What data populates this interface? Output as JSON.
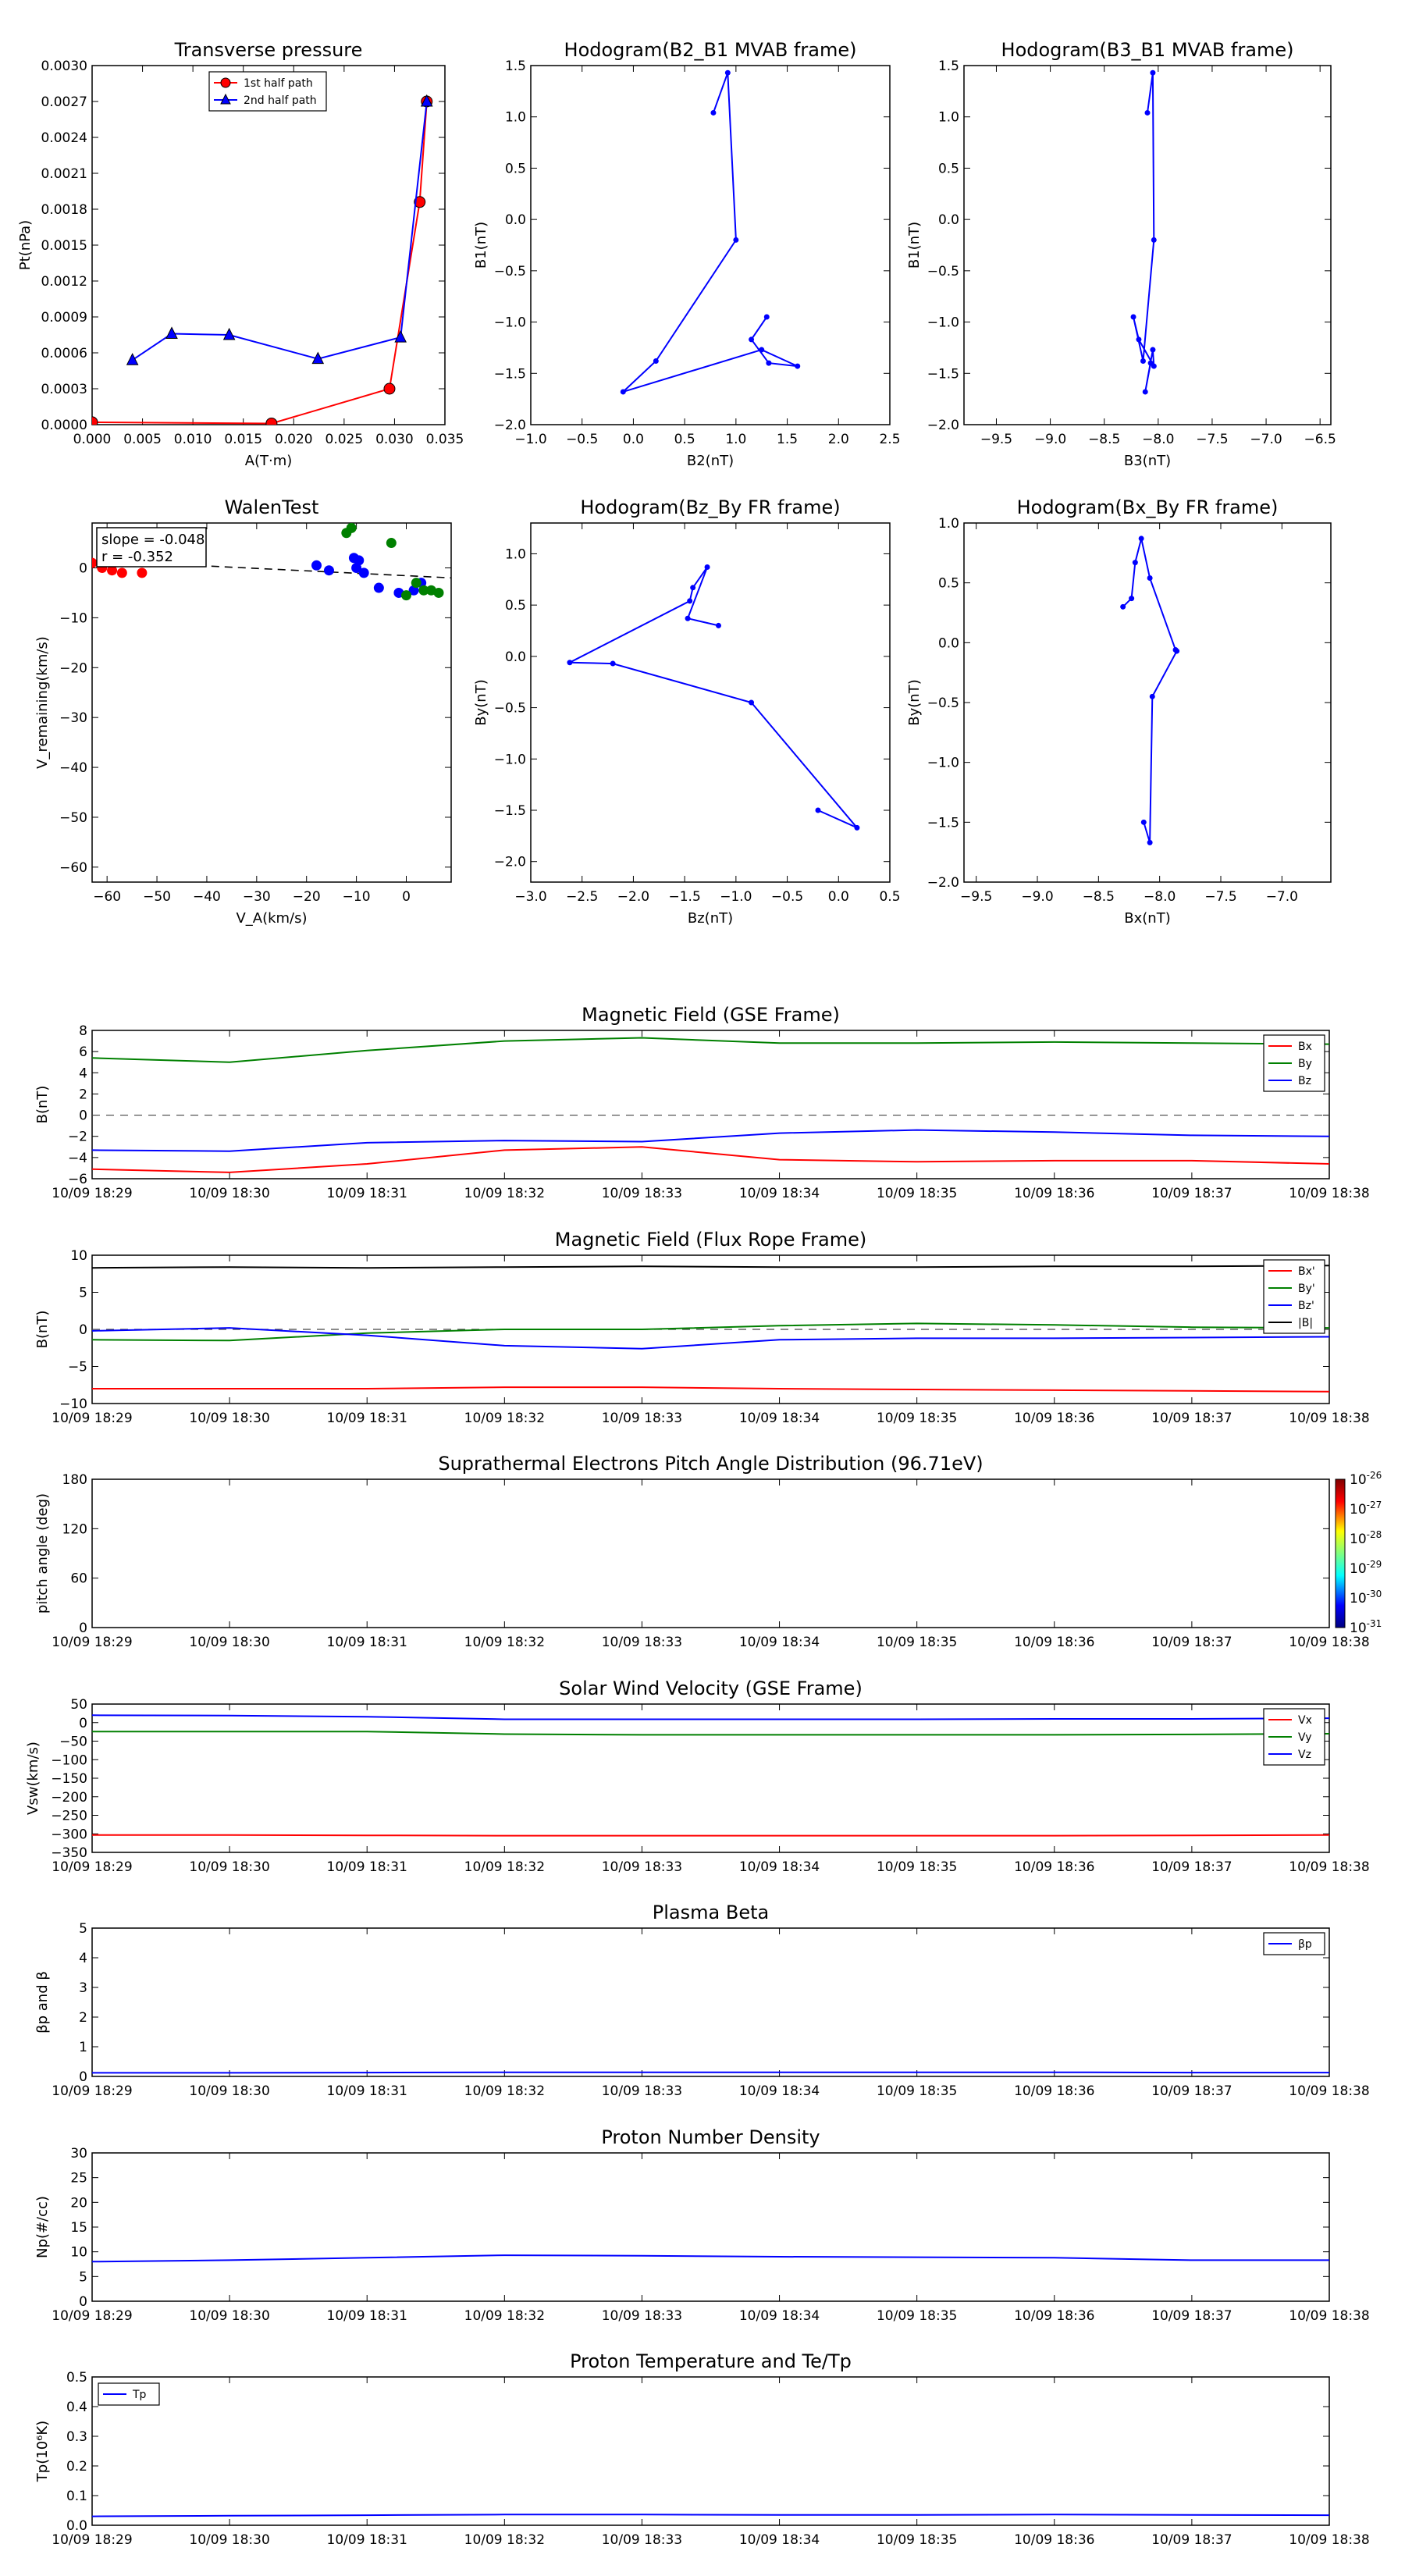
{
  "time_ticks": [
    "10/09 18:29",
    "10/09 18:30",
    "10/09 18:31",
    "10/09 18:32",
    "10/09 18:33",
    "10/09 18:34",
    "10/09 18:35",
    "10/09 18:36",
    "10/09 18:37",
    "10/09 18:38"
  ],
  "colors": {
    "red": "#ff0000",
    "green": "#008000",
    "blue": "#0000ff",
    "black": "#000000"
  },
  "chart_data": [
    {
      "id": "tp",
      "type": "line",
      "title": "Transverse pressure",
      "xlabel": "A(T·m)",
      "ylabel": "Pt(nPa)",
      "xlim": [
        0,
        0.035
      ],
      "ylim": [
        0,
        0.003
      ],
      "xticks": [
        0,
        0.005,
        0.01,
        0.015,
        0.02,
        0.025,
        0.03,
        0.035
      ],
      "xtick_labels": [
        "0.000",
        "0.005",
        "0.010",
        "0.015",
        "0.020",
        "0.025",
        "0.030",
        "0.035"
      ],
      "yticks": [
        0,
        0.0003,
        0.0006,
        0.0009,
        0.0012,
        0.0015,
        0.0018,
        0.0021,
        0.0024,
        0.0027,
        0.003
      ],
      "ytick_labels": [
        "0.0000",
        "0.0003",
        "0.0006",
        "0.0009",
        "0.0012",
        "0.0015",
        "0.0018",
        "0.0021",
        "0.0024",
        "0.0027",
        "0.0030"
      ],
      "legend": "top-center",
      "series": [
        {
          "name": "1st half path",
          "color": "#ff0000",
          "marker": "circle",
          "x": [
            0,
            0.0178,
            0.0295,
            0.0325,
            0.0332
          ],
          "y": [
            2e-05,
            1e-05,
            0.0003,
            0.00186,
            0.0027
          ]
        },
        {
          "name": "2nd half path",
          "color": "#0000ff",
          "marker": "triangle",
          "x": [
            0.004,
            0.0079,
            0.0136,
            0.0224,
            0.0306,
            0.0332
          ],
          "y": [
            0.00054,
            0.00076,
            0.00075,
            0.00055,
            0.00073,
            0.0027
          ]
        }
      ]
    },
    {
      "id": "h1",
      "type": "line",
      "title": "Hodogram(B2_B1 MVAB frame)",
      "xlabel": "B2(nT)",
      "ylabel": "B1(nT)",
      "xlim": [
        -1.0,
        2.5
      ],
      "ylim": [
        -2.0,
        1.5
      ],
      "xticks": [
        -1.0,
        -0.5,
        0,
        0.5,
        1.0,
        1.5,
        2.0,
        2.5
      ],
      "xtick_labels": [
        "−1.0",
        "−0.5",
        "0.0",
        "0.5",
        "1.0",
        "1.5",
        "2.0",
        "2.5"
      ],
      "yticks": [
        -2.0,
        -1.5,
        -1.0,
        -0.5,
        0,
        0.5,
        1.0,
        1.5
      ],
      "ytick_labels": [
        "−2.0",
        "−1.5",
        "−1.0",
        "−0.5",
        "0.0",
        "0.5",
        "1.0",
        "1.5"
      ],
      "series": [
        {
          "color": "#0000ff",
          "x": [
            0.78,
            0.92,
            1.0,
            0.22,
            -0.1,
            1.25,
            1.6,
            1.32,
            1.15,
            1.3
          ],
          "y": [
            1.04,
            1.43,
            -0.2,
            -1.38,
            -1.68,
            -1.27,
            -1.43,
            -1.4,
            -1.17,
            -0.95
          ]
        }
      ]
    },
    {
      "id": "h2",
      "type": "line",
      "title": "Hodogram(B3_B1 MVAB frame)",
      "xlabel": "B3(nT)",
      "ylabel": "B1(nT)",
      "xlim": [
        -9.8,
        -6.4
      ],
      "ylim": [
        -2.0,
        1.5
      ],
      "xticks": [
        -9.5,
        -9.0,
        -8.5,
        -8.0,
        -7.5,
        -7.0,
        -6.5
      ],
      "xtick_labels": [
        "−9.5",
        "−9.0",
        "−8.5",
        "−8.0",
        "−7.5",
        "−7.0",
        "−6.5"
      ],
      "yticks": [
        -2.0,
        -1.5,
        -1.0,
        -0.5,
        0,
        0.5,
        1.0,
        1.5
      ],
      "ytick_labels": [
        "−2.0",
        "−1.5",
        "−1.0",
        "−0.5",
        "0.0",
        "0.5",
        "1.0",
        "1.5"
      ],
      "series": [
        {
          "color": "#0000ff",
          "x": [
            -8.1,
            -8.05,
            -8.04,
            -8.14,
            -8.23,
            -8.18,
            -8.04,
            -8.05,
            -8.12,
            -8.07
          ],
          "y": [
            1.04,
            1.43,
            -0.2,
            -1.38,
            -0.95,
            -1.17,
            -1.43,
            -1.27,
            -1.68,
            -1.4
          ]
        }
      ]
    },
    {
      "id": "walen",
      "type": "scatter",
      "title": "WalenTest",
      "xlabel": "V_A(km/s)",
      "ylabel": "V_remaining(km/s)",
      "xlim": [
        -63,
        9
      ],
      "ylim": [
        -63,
        9
      ],
      "xticks": [
        -60,
        -50,
        -40,
        -30,
        -20,
        -10,
        0
      ],
      "xtick_labels": [
        "−60",
        "−50",
        "−40",
        "−30",
        "−20",
        "−10",
        "0"
      ],
      "yticks": [
        -60,
        -50,
        -40,
        -30,
        -20,
        -10,
        0
      ],
      "ytick_labels": [
        "−60",
        "−50",
        "−40",
        "−30",
        "−20",
        "−10",
        "0"
      ],
      "annotation": [
        "slope = -0.048",
        "r = -0.352"
      ],
      "fit_line": {
        "x": [
          -63,
          9
        ],
        "y": [
          1.5,
          -2.0
        ]
      },
      "series": [
        {
          "color": "#ff0000",
          "x": [
            -63,
            -61,
            -59,
            -57,
            -53
          ],
          "y": [
            1,
            0,
            -0.5,
            -1,
            -1
          ]
        },
        {
          "color": "#0000ff",
          "x": [
            -18,
            -15.5,
            -10.5,
            -9.5,
            -10,
            -8.5,
            -5.5,
            -1.5,
            1.5,
            3
          ],
          "y": [
            0.5,
            -0.5,
            2,
            1.5,
            0,
            -1,
            -4,
            -5,
            -4.5,
            -3
          ]
        },
        {
          "color": "#008000",
          "x": [
            -12,
            -11,
            -3,
            0,
            2,
            3.5,
            5,
            6.5
          ],
          "y": [
            7,
            8,
            5,
            -5.5,
            -3,
            -4.5,
            -4.5,
            -5
          ]
        }
      ]
    },
    {
      "id": "h3",
      "type": "line",
      "title": "Hodogram(Bz_By FR frame)",
      "xlabel": "Bz(nT)",
      "ylabel": "By(nT)",
      "xlim": [
        -3.0,
        0.5
      ],
      "ylim": [
        -2.2,
        1.3
      ],
      "xticks": [
        -3.0,
        -2.5,
        -2.0,
        -1.5,
        -1.0,
        -0.5,
        0,
        0.5
      ],
      "xtick_labels": [
        "−3.0",
        "−2.5",
        "−2.0",
        "−1.5",
        "−1.0",
        "−0.5",
        "0.0",
        "0.5"
      ],
      "yticks": [
        -2.0,
        -1.5,
        -1.0,
        -0.5,
        0,
        0.5,
        1.0
      ],
      "ytick_labels": [
        "−2.0",
        "−1.5",
        "−1.0",
        "−0.5",
        "0.0",
        "0.5",
        "1.0"
      ],
      "series": [
        {
          "color": "#0000ff",
          "x": [
            -0.2,
            0.18,
            -0.85,
            -2.2,
            -2.62,
            -1.45,
            -1.42,
            -1.28,
            -1.47,
            -1.17
          ],
          "y": [
            -1.5,
            -1.67,
            -0.45,
            -0.07,
            -0.06,
            0.54,
            0.67,
            0.87,
            0.37,
            0.3
          ]
        }
      ]
    },
    {
      "id": "h4",
      "type": "line",
      "title": "Hodogram(Bx_By FR frame)",
      "xlabel": "Bx(nT)",
      "ylabel": "By(nT)",
      "xlim": [
        -9.6,
        -6.6
      ],
      "ylim": [
        -2.0,
        1.0
      ],
      "xticks": [
        -9.5,
        -9.0,
        -8.5,
        -8.0,
        -7.5,
        -7.0
      ],
      "xtick_labels": [
        "−9.5",
        "−9.0",
        "−8.5",
        "−8.0",
        "−7.5",
        "−7.0"
      ],
      "yticks": [
        -2.0,
        -1.5,
        -1.0,
        -0.5,
        0,
        0.5,
        1.0
      ],
      "ytick_labels": [
        "−2.0",
        "−1.5",
        "−1.0",
        "−0.5",
        "0.0",
        "0.5",
        "1.0"
      ],
      "series": [
        {
          "color": "#0000ff",
          "x": [
            -8.13,
            -8.08,
            -8.06,
            -7.86,
            -7.87,
            -8.08,
            -8.15,
            -8.2,
            -8.23,
            -8.3
          ],
          "y": [
            -1.5,
            -1.67,
            -0.45,
            -0.07,
            -0.06,
            0.54,
            0.87,
            0.67,
            0.37,
            0.3
          ]
        }
      ]
    },
    {
      "id": "bgse",
      "type": "line",
      "title": "Magnetic Field (GSE Frame)",
      "ylabel": "B(nT)",
      "xlim": [
        0,
        9
      ],
      "ylim": [
        -6,
        8
      ],
      "yticks": [
        -6,
        -4,
        -2,
        0,
        2,
        4,
        6,
        8
      ],
      "ytick_labels": [
        "−6",
        "−4",
        "−2",
        "0",
        "2",
        "4",
        "6",
        "8"
      ],
      "zero_line": true,
      "legend": "top-right",
      "series": [
        {
          "name": "Bx",
          "color": "#ff0000",
          "x": [
            0,
            1,
            2,
            3,
            4,
            5,
            6,
            7,
            8,
            9
          ],
          "y": [
            -5.1,
            -5.4,
            -4.6,
            -3.3,
            -3.0,
            -4.2,
            -4.4,
            -4.3,
            -4.3,
            -4.6
          ]
        },
        {
          "name": "By",
          "color": "#008000",
          "x": [
            0,
            1,
            2,
            3,
            4,
            5,
            6,
            7,
            8,
            9
          ],
          "y": [
            5.4,
            5.0,
            6.1,
            7.0,
            7.3,
            6.8,
            6.8,
            6.9,
            6.8,
            6.7
          ]
        },
        {
          "name": "Bz",
          "color": "#0000ff",
          "x": [
            0,
            1,
            2,
            3,
            4,
            5,
            6,
            7,
            8,
            9
          ],
          "y": [
            -3.3,
            -3.4,
            -2.6,
            -2.4,
            -2.5,
            -1.7,
            -1.4,
            -1.6,
            -1.9,
            -2.0
          ]
        }
      ]
    },
    {
      "id": "bfr",
      "type": "line",
      "title": "Magnetic Field (Flux Rope Frame)",
      "ylabel": "B(nT)",
      "xlim": [
        0,
        9
      ],
      "ylim": [
        -10,
        10
      ],
      "yticks": [
        -10,
        -5,
        0,
        5,
        10
      ],
      "ytick_labels": [
        "−10",
        "−5",
        "0",
        "5",
        "10"
      ],
      "zero_line": true,
      "legend": "top-right",
      "series": [
        {
          "name": "Bx'",
          "color": "#ff0000",
          "x": [
            0,
            1,
            2,
            3,
            4,
            5,
            6,
            7,
            8,
            9
          ],
          "y": [
            -8.0,
            -8.0,
            -8.0,
            -7.8,
            -7.8,
            -8.0,
            -8.1,
            -8.2,
            -8.3,
            -8.4
          ]
        },
        {
          "name": "By'",
          "color": "#008000",
          "x": [
            0,
            1,
            2,
            3,
            4,
            5,
            6,
            7,
            8,
            9
          ],
          "y": [
            -1.4,
            -1.5,
            -0.5,
            0.0,
            0.0,
            0.5,
            0.8,
            0.6,
            0.3,
            0.2
          ]
        },
        {
          "name": "Bz'",
          "color": "#0000ff",
          "x": [
            0,
            1,
            2,
            3,
            4,
            5,
            6,
            7,
            8,
            9
          ],
          "y": [
            -0.2,
            0.2,
            -0.8,
            -2.2,
            -2.6,
            -1.4,
            -1.2,
            -1.2,
            -1.1,
            -1.0
          ]
        },
        {
          "name": "|B|",
          "color": "#000000",
          "x": [
            0,
            1,
            2,
            3,
            4,
            5,
            6,
            7,
            8,
            9
          ],
          "y": [
            8.3,
            8.4,
            8.3,
            8.4,
            8.5,
            8.4,
            8.4,
            8.5,
            8.5,
            8.6
          ]
        }
      ]
    },
    {
      "id": "pad",
      "type": "heatmap",
      "title": "Suprathermal Electrons Pitch Angle Distribution (96.71eV)",
      "ylabel": "pitch angle (deg)",
      "xlim": [
        0,
        9
      ],
      "ylim": [
        0,
        180
      ],
      "yticks": [
        0,
        60,
        120,
        180
      ],
      "ytick_labels": [
        "0",
        "60",
        "120",
        "180"
      ],
      "colorbar": {
        "exponents": [
          "-26",
          "-27",
          "-28",
          "-29",
          "-30",
          "-31"
        ],
        "base": "10"
      },
      "series": []
    },
    {
      "id": "vsw",
      "type": "line",
      "title": "Solar Wind Velocity (GSE Frame)",
      "ylabel": "Vsw(km/s)",
      "xlim": [
        0,
        9
      ],
      "ylim": [
        -350,
        50
      ],
      "yticks": [
        -350,
        -300,
        -250,
        -200,
        -150,
        -100,
        -50,
        0,
        50
      ],
      "ytick_labels": [
        "−350",
        "−300",
        "−250",
        "−200",
        "−150",
        "−100",
        "−50",
        "0",
        "50"
      ],
      "legend": "top-right",
      "series": [
        {
          "name": "Vx",
          "color": "#ff0000",
          "x": [
            0,
            1,
            2,
            3,
            4,
            5,
            6,
            7,
            8,
            9
          ],
          "y": [
            -303,
            -303,
            -304,
            -305,
            -305,
            -305,
            -305,
            -305,
            -304,
            -303
          ]
        },
        {
          "name": "Vy",
          "color": "#008000",
          "x": [
            0,
            1,
            2,
            3,
            4,
            5,
            6,
            7,
            8,
            9
          ],
          "y": [
            -24,
            -24,
            -24,
            -31,
            -33,
            -33,
            -33,
            -33,
            -32,
            -30
          ]
        },
        {
          "name": "Vz",
          "color": "#0000ff",
          "x": [
            0,
            1,
            2,
            3,
            4,
            5,
            6,
            7,
            8,
            9
          ],
          "y": [
            20,
            19,
            16,
            9,
            9,
            9,
            9,
            10,
            10,
            12
          ]
        }
      ]
    },
    {
      "id": "beta",
      "type": "line",
      "title": "Plasma Beta",
      "ylabel": "βp and β",
      "xlim": [
        0,
        9
      ],
      "ylim": [
        0,
        5
      ],
      "yticks": [
        0,
        1,
        2,
        3,
        4,
        5
      ],
      "ytick_labels": [
        "0",
        "1",
        "2",
        "3",
        "4",
        "5"
      ],
      "legend": "top-right",
      "series": [
        {
          "name": "βp",
          "color": "#0000ff",
          "x": [
            0,
            1,
            2,
            3,
            4,
            5,
            6,
            7,
            8,
            9
          ],
          "y": [
            0.12,
            0.12,
            0.13,
            0.14,
            0.14,
            0.14,
            0.14,
            0.14,
            0.13,
            0.13
          ]
        }
      ]
    },
    {
      "id": "np",
      "type": "line",
      "title": "Proton Number Density",
      "ylabel": "Np(#/cc)",
      "xlim": [
        0,
        9
      ],
      "ylim": [
        0,
        30
      ],
      "yticks": [
        0,
        5,
        10,
        15,
        20,
        25,
        30
      ],
      "ytick_labels": [
        "0",
        "5",
        "10",
        "15",
        "20",
        "25",
        "30"
      ],
      "series": [
        {
          "color": "#0000ff",
          "x": [
            0,
            1,
            2,
            3,
            4,
            5,
            6,
            7,
            8,
            9
          ],
          "y": [
            8.0,
            8.3,
            8.8,
            9.3,
            9.2,
            9.0,
            8.9,
            8.8,
            8.3,
            8.3
          ]
        }
      ]
    },
    {
      "id": "tpp",
      "type": "line",
      "title": "Proton Temperature and Te/Tp",
      "ylabel": "Tp(10⁶K)",
      "xlim": [
        0,
        9
      ],
      "ylim": [
        0,
        0.5
      ],
      "yticks": [
        0,
        0.1,
        0.2,
        0.3,
        0.4,
        0.5
      ],
      "ytick_labels": [
        "0.0",
        "0.1",
        "0.2",
        "0.3",
        "0.4",
        "0.5"
      ],
      "legend": "top-left",
      "series": [
        {
          "name": "Tp",
          "color": "#0000ff",
          "x": [
            0,
            1,
            2,
            3,
            4,
            5,
            6,
            7,
            8,
            9
          ],
          "y": [
            0.03,
            0.032,
            0.034,
            0.036,
            0.036,
            0.035,
            0.035,
            0.036,
            0.035,
            0.034
          ]
        }
      ]
    }
  ]
}
